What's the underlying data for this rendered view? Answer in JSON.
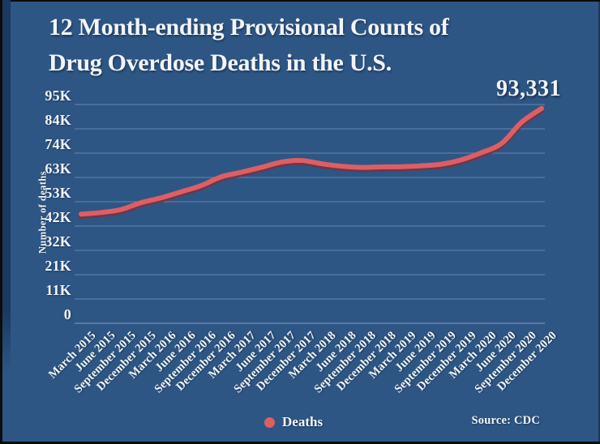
{
  "colors": {
    "background": "#2d5685",
    "edge": "#0c0c0c",
    "left_strip": "#1a3a5f",
    "line": "#dd5f63",
    "line_shadow": "#7e2f3c",
    "grid": "rgba(201,214,232,0.38)",
    "text": "#f3f5f8"
  },
  "header": {
    "title_line1": "12 Month-ending Provisional Counts of",
    "title_line2": "Drug Overdose Deaths in the U.S."
  },
  "y_axis": {
    "title": "Number of deaths"
  },
  "annotation": {
    "final_value": "93,331"
  },
  "legend": {
    "label": "Deaths"
  },
  "source": {
    "label": "Source: CDC"
  },
  "chart_data": {
    "type": "line",
    "title": "12 Month-ending Provisional Counts of Drug Overdose Deaths in the U.S.",
    "xlabel": "",
    "ylabel": "Number of deaths",
    "ylim": [
      0,
      95000
    ],
    "y_tick_labels_top_to_bottom": [
      "95K",
      "84K",
      "74K",
      "63K",
      "53K",
      "42K",
      "32K",
      "21K",
      "11K",
      "0"
    ],
    "grid": "horizontal",
    "legend_position": "bottom-center",
    "x": [
      "March 2015",
      "June 2015",
      "September 2015",
      "December 2015",
      "March 2016",
      "June 2016",
      "September 2016",
      "December 2016",
      "March 2017",
      "June 2017",
      "September 2017",
      "December 2017",
      "March 2018",
      "June 2018",
      "September 2018",
      "December 2018",
      "March 2019",
      "June 2019",
      "September 2019",
      "December 2019",
      "March 2020",
      "June 2020",
      "September 2020",
      "December 2020"
    ],
    "series": [
      {
        "name": "Deaths",
        "color": "#dd5f63",
        "values": [
          47400,
          48100,
          49400,
          52400,
          54500,
          57100,
          59800,
          63600,
          65600,
          67700,
          70000,
          70700,
          69300,
          68200,
          67700,
          67900,
          68000,
          68400,
          69100,
          71000,
          74100,
          78100,
          87300,
          93331
        ]
      }
    ],
    "annotations": [
      {
        "x": "December 2020",
        "value": 93331,
        "text": "93,331"
      }
    ]
  }
}
